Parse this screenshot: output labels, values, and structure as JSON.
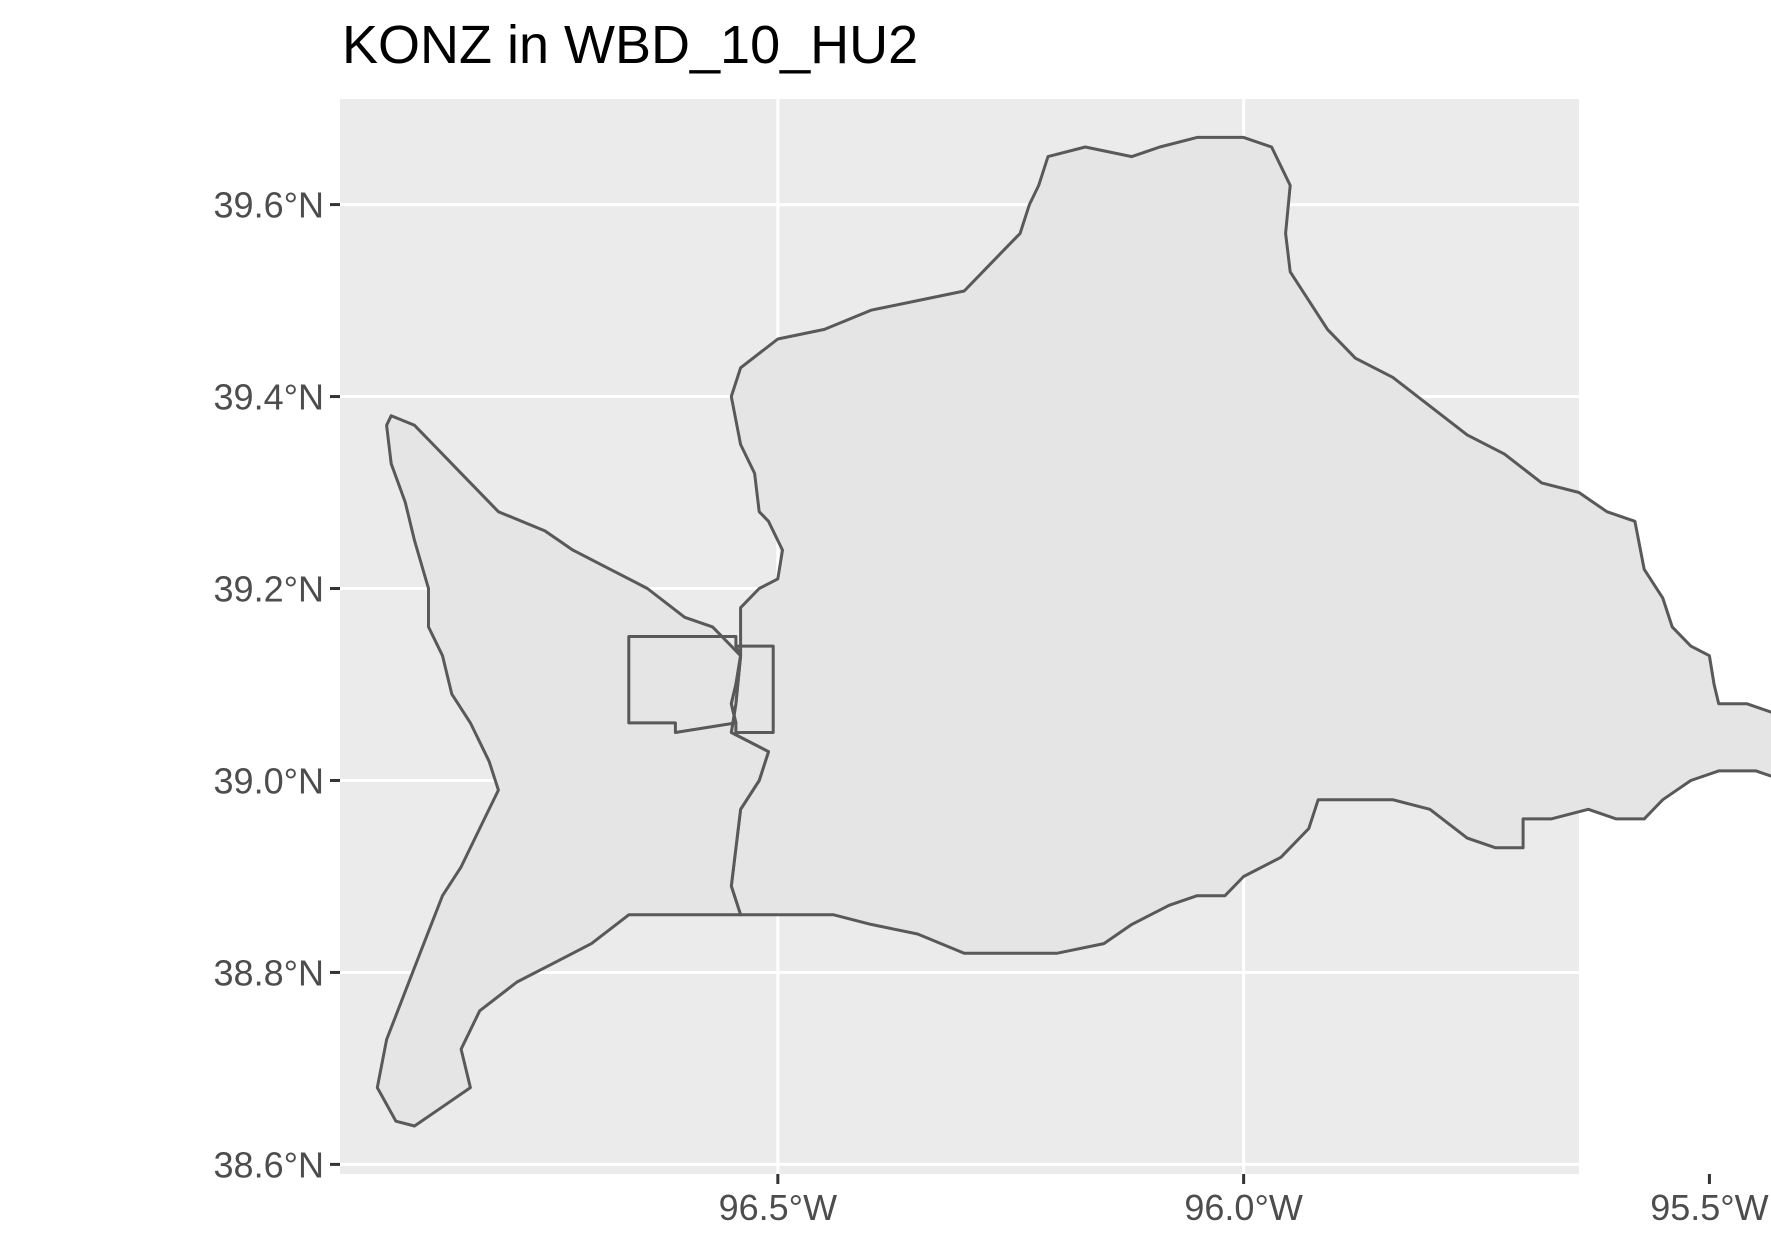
{
  "title": "KONZ in WBD_10_HU2",
  "colors": {
    "panel": "#ebebeb",
    "grid": "#ffffff",
    "polygon_fill": "#e5e5e5",
    "polygon_stroke": "#595959",
    "tick_text": "#4d4d4d",
    "title_text": "#000000"
  },
  "map": {
    "projection": "geographic lon/lat",
    "x_range_deg": [
      -96.97,
      -95.64
    ],
    "y_range_deg": [
      38.59,
      39.71
    ],
    "grid": true,
    "x_ticks": [
      {
        "value": -96.5,
        "label": "96.5°W"
      },
      {
        "value": -96.0,
        "label": "96.0°W"
      },
      {
        "value": -95.5,
        "label": "95.5°W"
      }
    ],
    "y_ticks": [
      {
        "value": 39.6,
        "label": "39.6°N"
      },
      {
        "value": 39.4,
        "label": "39.4°N"
      },
      {
        "value": 39.2,
        "label": "39.2°N"
      },
      {
        "value": 39.0,
        "label": "39.0°N"
      },
      {
        "value": 38.8,
        "label": "38.8°N"
      },
      {
        "value": 38.6,
        "label": "38.6°N"
      }
    ],
    "features": [
      {
        "name": "east-watershed",
        "coords": [
          [
            -96.54,
            38.86
          ],
          [
            -96.55,
            38.89
          ],
          [
            -96.54,
            38.97
          ],
          [
            -96.52,
            39.0
          ],
          [
            -96.51,
            39.03
          ],
          [
            -96.55,
            39.05
          ],
          [
            -96.545,
            39.08
          ],
          [
            -96.54,
            39.13
          ],
          [
            -96.54,
            39.18
          ],
          [
            -96.52,
            39.2
          ],
          [
            -96.5,
            39.21
          ],
          [
            -96.495,
            39.24
          ],
          [
            -96.51,
            39.27
          ],
          [
            -96.52,
            39.28
          ],
          [
            -96.525,
            39.32
          ],
          [
            -96.54,
            39.35
          ],
          [
            -96.55,
            39.4
          ],
          [
            -96.54,
            39.43
          ],
          [
            -96.5,
            39.46
          ],
          [
            -96.45,
            39.47
          ],
          [
            -96.4,
            39.49
          ],
          [
            -96.35,
            39.5
          ],
          [
            -96.3,
            39.51
          ],
          [
            -96.28,
            39.53
          ],
          [
            -96.26,
            39.55
          ],
          [
            -96.24,
            39.57
          ],
          [
            -96.23,
            39.6
          ],
          [
            -96.22,
            39.62
          ],
          [
            -96.21,
            39.65
          ],
          [
            -96.17,
            39.66
          ],
          [
            -96.12,
            39.65
          ],
          [
            -96.09,
            39.66
          ],
          [
            -96.05,
            39.67
          ],
          [
            -96.0,
            39.67
          ],
          [
            -95.97,
            39.66
          ],
          [
            -95.96,
            39.64
          ],
          [
            -95.95,
            39.62
          ],
          [
            -95.955,
            39.57
          ],
          [
            -95.95,
            39.53
          ],
          [
            -95.93,
            39.5
          ],
          [
            -95.91,
            39.47
          ],
          [
            -95.88,
            39.44
          ],
          [
            -95.84,
            39.42
          ],
          [
            -95.8,
            39.39
          ],
          [
            -95.76,
            39.36
          ],
          [
            -95.72,
            39.34
          ],
          [
            -95.68,
            39.31
          ],
          [
            -95.64,
            39.3
          ],
          [
            -95.61,
            39.28
          ],
          [
            -95.58,
            39.27
          ],
          [
            -95.57,
            39.22
          ],
          [
            -95.55,
            39.19
          ],
          [
            -95.54,
            39.16
          ],
          [
            -95.52,
            39.14
          ],
          [
            -95.5,
            39.13
          ],
          [
            -95.495,
            39.1
          ],
          [
            -95.49,
            39.08
          ],
          [
            -95.46,
            39.08
          ],
          [
            -95.43,
            39.07
          ],
          [
            -95.42,
            39.05
          ],
          [
            -95.41,
            39.02
          ],
          [
            -95.395,
            39.0
          ],
          [
            -95.42,
            39.0
          ],
          [
            -95.45,
            39.01
          ],
          [
            -95.49,
            39.01
          ],
          [
            -95.52,
            39.0
          ],
          [
            -95.55,
            38.98
          ],
          [
            -95.57,
            38.96
          ],
          [
            -95.6,
            38.96
          ],
          [
            -95.63,
            38.97
          ],
          [
            -95.67,
            38.96
          ],
          [
            -95.7,
            38.96
          ],
          [
            -95.7,
            38.93
          ],
          [
            -95.73,
            38.93
          ],
          [
            -95.76,
            38.94
          ],
          [
            -95.8,
            38.97
          ],
          [
            -95.84,
            38.98
          ],
          [
            -95.88,
            38.98
          ],
          [
            -95.92,
            38.98
          ],
          [
            -95.93,
            38.95
          ],
          [
            -95.96,
            38.92
          ],
          [
            -96.0,
            38.9
          ],
          [
            -96.02,
            38.88
          ],
          [
            -96.05,
            38.88
          ],
          [
            -96.08,
            38.87
          ],
          [
            -96.12,
            38.85
          ],
          [
            -96.15,
            38.83
          ],
          [
            -96.2,
            38.82
          ],
          [
            -96.25,
            38.82
          ],
          [
            -96.3,
            38.82
          ],
          [
            -96.35,
            38.84
          ],
          [
            -96.4,
            38.85
          ],
          [
            -96.44,
            38.86
          ],
          [
            -96.48,
            38.86
          ],
          [
            -96.54,
            38.86
          ]
        ]
      },
      {
        "name": "west-watershed",
        "coords": [
          [
            -96.54,
            38.86
          ],
          [
            -96.55,
            38.89
          ],
          [
            -96.54,
            38.97
          ],
          [
            -96.52,
            39.0
          ],
          [
            -96.51,
            39.03
          ],
          [
            -96.55,
            39.05
          ],
          [
            -96.545,
            39.08
          ],
          [
            -96.54,
            39.13
          ],
          [
            -96.57,
            39.16
          ],
          [
            -96.6,
            39.17
          ],
          [
            -96.64,
            39.2
          ],
          [
            -96.68,
            39.22
          ],
          [
            -96.72,
            39.24
          ],
          [
            -96.75,
            39.26
          ],
          [
            -96.8,
            39.28
          ],
          [
            -96.84,
            39.32
          ],
          [
            -96.87,
            39.35
          ],
          [
            -96.89,
            39.37
          ],
          [
            -96.915,
            39.38
          ],
          [
            -96.92,
            39.37
          ],
          [
            -96.915,
            39.33
          ],
          [
            -96.9,
            39.29
          ],
          [
            -96.89,
            39.25
          ],
          [
            -96.875,
            39.2
          ],
          [
            -96.875,
            39.16
          ],
          [
            -96.86,
            39.13
          ],
          [
            -96.85,
            39.09
          ],
          [
            -96.83,
            39.06
          ],
          [
            -96.81,
            39.02
          ],
          [
            -96.8,
            38.99
          ],
          [
            -96.82,
            38.95
          ],
          [
            -96.84,
            38.91
          ],
          [
            -96.86,
            38.88
          ],
          [
            -96.88,
            38.83
          ],
          [
            -96.9,
            38.78
          ],
          [
            -96.92,
            38.73
          ],
          [
            -96.93,
            38.68
          ],
          [
            -96.91,
            38.645
          ],
          [
            -96.89,
            38.64
          ],
          [
            -96.86,
            38.66
          ],
          [
            -96.83,
            38.68
          ],
          [
            -96.84,
            38.72
          ],
          [
            -96.82,
            38.76
          ],
          [
            -96.78,
            38.79
          ],
          [
            -96.74,
            38.81
          ],
          [
            -96.7,
            38.83
          ],
          [
            -96.66,
            38.86
          ],
          [
            -96.62,
            38.86
          ],
          [
            -96.58,
            38.86
          ],
          [
            -96.54,
            38.86
          ]
        ]
      },
      {
        "name": "konz-site-west",
        "coords": [
          [
            -96.66,
            39.06
          ],
          [
            -96.66,
            39.15
          ],
          [
            -96.545,
            39.15
          ],
          [
            -96.545,
            39.14
          ],
          [
            -96.54,
            39.13
          ],
          [
            -96.545,
            39.1
          ],
          [
            -96.55,
            39.08
          ],
          [
            -96.545,
            39.06
          ],
          [
            -96.61,
            39.05
          ],
          [
            -96.61,
            39.06
          ],
          [
            -96.66,
            39.06
          ]
        ]
      },
      {
        "name": "konz-site-east",
        "coords": [
          [
            -96.545,
            39.14
          ],
          [
            -96.505,
            39.14
          ],
          [
            -96.505,
            39.05
          ],
          [
            -96.545,
            39.05
          ],
          [
            -96.545,
            39.06
          ],
          [
            -96.55,
            39.08
          ],
          [
            -96.545,
            39.1
          ],
          [
            -96.54,
            39.13
          ],
          [
            -96.545,
            39.14
          ]
        ]
      }
    ]
  }
}
